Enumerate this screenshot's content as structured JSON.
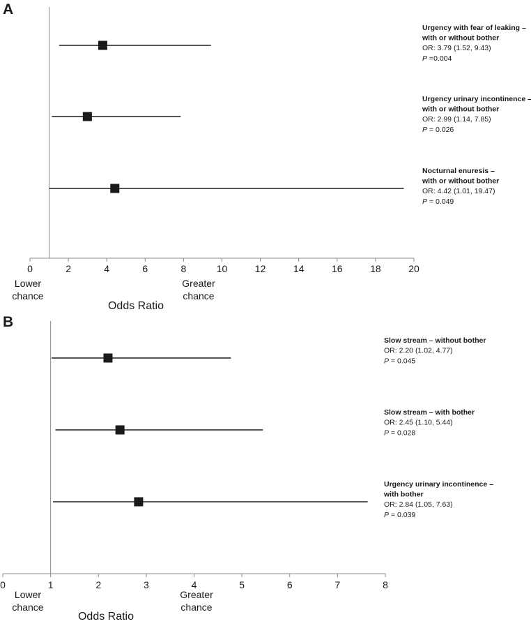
{
  "chart_data": [
    {
      "type": "forest",
      "panel": "A",
      "categories": [
        [
          "Urgency with fear of leaking –",
          "with or without bother"
        ],
        [
          "Urgency urinary incontinence –",
          "with or without bother"
        ],
        [
          "Nocturnal enuresis –",
          "with or without bother"
        ]
      ],
      "values": [
        3.79,
        2.99,
        4.42
      ],
      "lower": [
        1.52,
        1.14,
        1.01
      ],
      "upper": [
        9.43,
        7.85,
        19.47
      ],
      "or_labels": [
        "OR: 3.79 (1.52, 9.43)",
        "OR: 2.99 (1.14, 7.85)",
        "OR: 4.42 (1.01, 19.47)"
      ],
      "p_symbol": "P",
      "p_labels": [
        " =0.004",
        " = 0.026",
        " = 0.049"
      ],
      "reference_line": 1,
      "xlim": [
        0,
        20
      ],
      "xticks": [
        0,
        2,
        4,
        6,
        8,
        10,
        12,
        14,
        16,
        18,
        20
      ],
      "xlabel": "Odds Ratio",
      "lower_label": [
        "Lower",
        "chance"
      ],
      "greater_label": [
        "Greater",
        "chance"
      ],
      "color": "#1a1a1a"
    },
    {
      "type": "forest",
      "panel": "B",
      "categories": [
        [
          "Slow stream – without bother"
        ],
        [
          "Slow stream – with bother"
        ],
        [
          "Urgency urinary incontinence –",
          "with bother"
        ]
      ],
      "values": [
        2.2,
        2.45,
        2.84
      ],
      "lower": [
        1.02,
        1.1,
        1.05
      ],
      "upper": [
        4.77,
        5.44,
        7.63
      ],
      "or_labels": [
        "OR: 2.20 (1.02, 4.77)",
        "OR: 2.45 (1.10, 5.44)",
        "OR: 2.84 (1.05, 7.63)"
      ],
      "p_symbol": "P",
      "p_labels": [
        " = 0.045",
        " = 0.028",
        " = 0.039"
      ],
      "reference_line": 1,
      "xlim": [
        0,
        8
      ],
      "xticks": [
        0,
        1,
        2,
        3,
        4,
        5,
        6,
        7,
        8
      ],
      "xlabel": "Odds Ratio",
      "lower_label": [
        "Lower",
        "chance"
      ],
      "greater_label": [
        "Greater",
        "chance"
      ],
      "color": "#1a1a1a"
    }
  ]
}
